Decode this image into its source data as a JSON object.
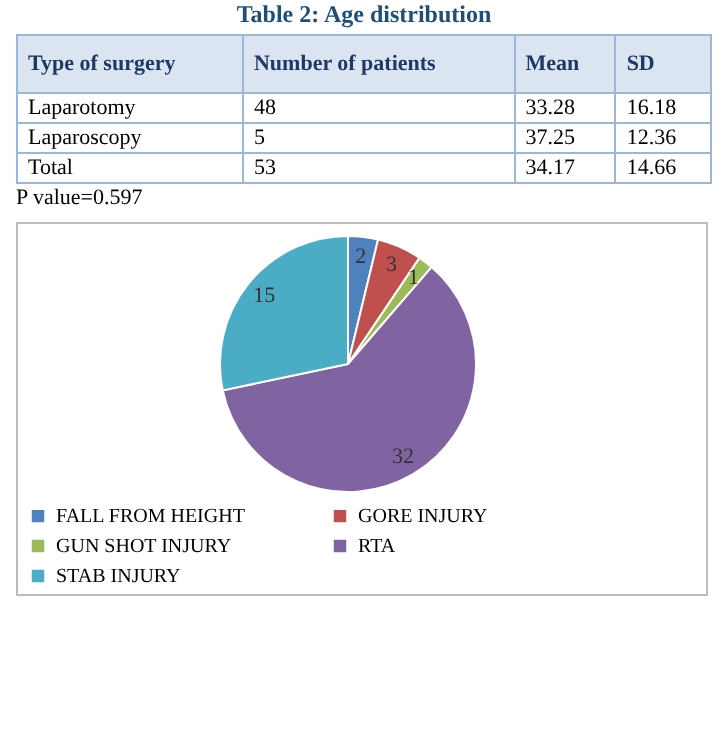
{
  "chart_data": [
    {
      "type": "other",
      "title": "Table 2: Age distribution",
      "annotations": [
        "Type of surgery",
        "Number of patients",
        "Mean",
        "SD",
        "Laparotomy",
        "48",
        "33.28",
        "16.18",
        "Laparoscopy",
        "5",
        "37.25",
        "12.36",
        "Total",
        "53",
        "34.17",
        "14.66",
        "P value=0.597"
      ]
    },
    {
      "type": "pie",
      "categories": [
        "FALL FROM HEIGHT",
        "GORE INJURY",
        "GUN SHOT INJURY",
        "RTA",
        "STAB INJURY"
      ],
      "values": [
        2,
        3,
        1,
        32,
        15
      ],
      "colors": [
        "#4f81bd",
        "#c0504d",
        "#9bbb59",
        "#8064a2",
        "#4bacc6"
      ],
      "data_labels": true,
      "legend": "bottom"
    }
  ]
}
